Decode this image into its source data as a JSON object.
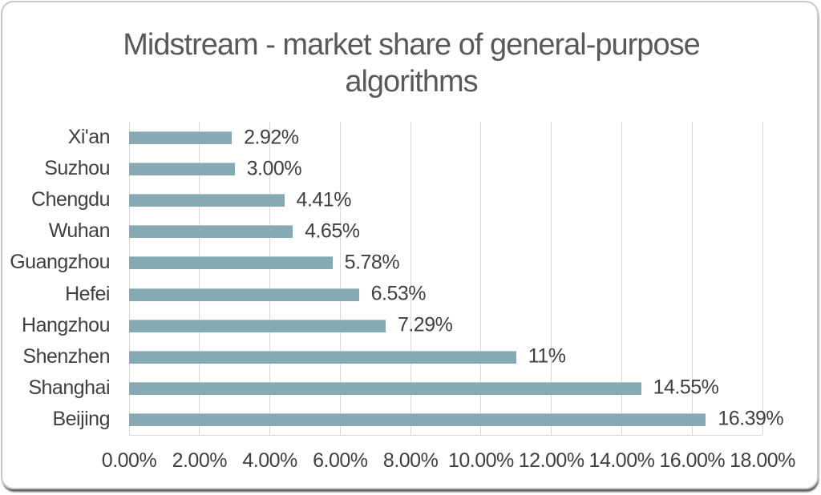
{
  "chart_data": {
    "type": "bar",
    "orientation": "horizontal",
    "title": "Midstream - market share of general-purpose algorithms",
    "categories": [
      "Xi'an",
      "Suzhou",
      "Chengdu",
      "Wuhan",
      "Guangzhou",
      "Hefei",
      "Hangzhou",
      "Shenzhen",
      "Shanghai",
      "Beijing"
    ],
    "values": [
      2.92,
      3.0,
      4.41,
      4.65,
      5.78,
      6.53,
      7.29,
      11,
      14.55,
      16.39
    ],
    "value_labels": [
      "2.92%",
      "3.00%",
      "4.41%",
      "4.65%",
      "5.78%",
      "6.53%",
      "7.29%",
      "11%",
      "14.55%",
      "16.39%"
    ],
    "x_ticks": [
      "0.00%",
      "2.00%",
      "4.00%",
      "6.00%",
      "8.00%",
      "10.00%",
      "12.00%",
      "14.00%",
      "16.00%",
      "18.00%"
    ],
    "x_min": 0,
    "x_max": 18,
    "grid": true,
    "legend": false,
    "xlabel": "",
    "ylabel": "",
    "colors": {
      "bar": "#85AAB4",
      "grid": "#D9D9D9",
      "title_text": "#595959",
      "label_text": "#404040",
      "card_border": "#C9C9C9"
    }
  }
}
